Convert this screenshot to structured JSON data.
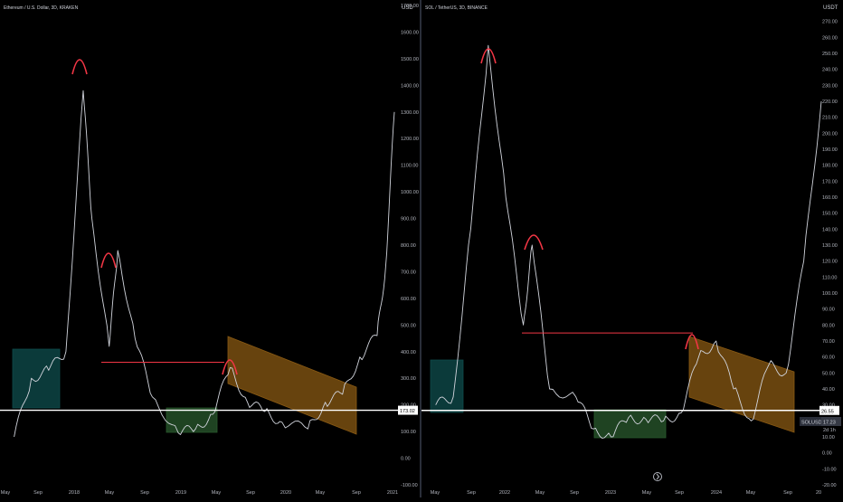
{
  "chart_data": [
    {
      "type": "line",
      "title": "Ethereum / U.S. Dollar, 3D, KRAKEN",
      "ylabel": "USD",
      "ylim": [
        -100,
        1700
      ],
      "yticks": [
        1700,
        1600,
        1500,
        1400,
        1300,
        1200,
        1100,
        1000,
        900,
        800,
        700,
        600,
        500,
        400,
        300,
        200,
        100,
        0.0,
        -100
      ],
      "ytick_labels": [
        "1700.00",
        "1600.00",
        "1500.00",
        "1400.00",
        "1300.00",
        "1200.00",
        "1100.00",
        "1000.00",
        "900.00",
        "800.00",
        "700.00",
        "600.00",
        "500.00",
        "400.00",
        "300.00",
        "200.00",
        "100.00",
        "0.00",
        "-100.00"
      ],
      "xticks": [
        "May",
        "Sep",
        "2018",
        "May",
        "Sep",
        "2019",
        "May",
        "Sep",
        "2020",
        "May",
        "Sep",
        "2021"
      ],
      "current_price": "173.02",
      "series": [
        {
          "color": "#d1d4dc",
          "x": [
            "2017-05",
            "2017-07",
            "2017-09",
            "2017-11",
            "2018-01",
            "2018-02",
            "2018-04",
            "2018-05",
            "2018-07",
            "2018-09",
            "2018-12",
            "2019-02",
            "2019-04",
            "2019-06",
            "2019-08",
            "2019-10",
            "2019-12",
            "2020-03",
            "2020-05",
            "2020-07",
            "2020-09",
            "2020-11",
            "2020-12",
            "2021-01"
          ],
          "y": [
            80,
            300,
            330,
            400,
            1380,
            900,
            420,
            780,
            450,
            230,
            95,
            110,
            165,
            340,
            210,
            175,
            135,
            110,
            210,
            240,
            380,
            460,
            720,
            1300
          ]
        }
      ],
      "annotations": {
        "support_level": 180,
        "resistance_line": 360,
        "peaks": [
          "2018-01",
          "2018-05",
          "2019-06"
        ]
      }
    },
    {
      "type": "line",
      "title": "SOL / TetherUS, 3D, BINANCE",
      "ylabel": "USDT",
      "ylim": [
        -20,
        280
      ],
      "yticks": [
        270,
        260,
        250,
        240,
        230,
        220,
        210,
        200,
        190,
        180,
        170,
        160,
        150,
        140,
        130,
        120,
        110,
        100,
        90,
        80,
        70,
        60,
        50,
        40,
        30,
        20,
        10,
        0,
        -10,
        -20
      ],
      "ytick_labels": [
        "270.00",
        "260.00",
        "250.00",
        "240.00",
        "230.00",
        "220.00",
        "210.00",
        "200.00",
        "190.00",
        "180.00",
        "170.00",
        "160.00",
        "150.00",
        "140.00",
        "130.00",
        "120.00",
        "110.00",
        "100.00",
        "90.00",
        "80.00",
        "70.00",
        "60.00",
        "50.00",
        "40.00",
        "30.00",
        "20.00",
        "10.00",
        "0.00",
        "-10.00",
        "-20.00"
      ],
      "xticks": [
        "May",
        "Sep",
        "2022",
        "May",
        "Sep",
        "2023",
        "May",
        "Sep",
        "2024",
        "May",
        "Sep",
        "20"
      ],
      "current_price": "26.55",
      "symbol_label": "SOLUSDT",
      "symbol_price": "17.23",
      "symbol_sub": "2d 1h",
      "series": [
        {
          "color": "#d1d4dc",
          "x": [
            "2021-05",
            "2021-07",
            "2021-09",
            "2021-11",
            "2022-01",
            "2022-03",
            "2022-04",
            "2022-06",
            "2022-09",
            "2022-11",
            "2023-01",
            "2023-03",
            "2023-05",
            "2023-07",
            "2023-09",
            "2023-11",
            "2024-01",
            "2024-03",
            "2024-05",
            "2024-07",
            "2024-09",
            "2024-11",
            "2025-01"
          ],
          "y": [
            30,
            35,
            140,
            255,
            160,
            80,
            130,
            40,
            35,
            15,
            10,
            22,
            21,
            20,
            25,
            60,
            70,
            40,
            20,
            55,
            50,
            120,
            220
          ]
        }
      ],
      "annotations": {
        "support_level": 26.55,
        "resistance_line": 75,
        "peaks": [
          "2021-11",
          "2022-04",
          "2023-12"
        ]
      }
    }
  ]
}
